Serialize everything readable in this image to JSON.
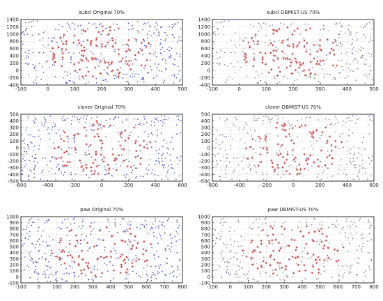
{
  "colors": {
    "min_original": "#4a55c8",
    "min_undersampled": "#8a8a8a",
    "majority": "#b01818",
    "majority_glow": "#f2c8c8"
  },
  "chart_data": [
    {
      "type": "scatter",
      "title": "subcl Original 70%",
      "xlim": [
        -100,
        500
      ],
      "ylim": [
        -400,
        1400
      ],
      "xticks": [
        -100,
        0,
        100,
        200,
        300,
        400,
        500
      ],
      "yticks": [
        -400,
        -200,
        0,
        200,
        400,
        600,
        800,
        1000,
        1200,
        1400
      ],
      "grid": true,
      "minority_style": "original",
      "seed": 11
    },
    {
      "type": "scatter",
      "title": "subcl DBMIST-US 70%",
      "xlim": [
        -100,
        500
      ],
      "ylim": [
        -400,
        1400
      ],
      "xticks": [
        -100,
        0,
        100,
        200,
        300,
        400,
        500
      ],
      "yticks": [
        -400,
        -200,
        0,
        200,
        400,
        600,
        800,
        1000,
        1200,
        1400
      ],
      "grid": true,
      "minority_style": "undersampled",
      "seed": 11
    },
    {
      "type": "scatter",
      "title": "clover Original 70%",
      "xlim": [
        -600,
        600
      ],
      "ylim": [
        -500,
        500
      ],
      "xticks": [
        -600,
        -400,
        -200,
        0,
        200,
        400,
        600
      ],
      "yticks": [
        -500,
        -400,
        -300,
        -200,
        -100,
        0,
        100,
        200,
        300,
        400,
        500
      ],
      "grid": true,
      "minority_style": "original",
      "seed": 23
    },
    {
      "type": "scatter",
      "title": "clover DBMIST-US 70%",
      "xlim": [
        -600,
        600
      ],
      "ylim": [
        -500,
        500
      ],
      "xticks": [
        -600,
        -400,
        -200,
        0,
        200,
        400,
        600
      ],
      "yticks": [
        -500,
        -400,
        -300,
        -200,
        -100,
        0,
        100,
        200,
        300,
        400,
        500
      ],
      "grid": true,
      "minority_style": "undersampled",
      "seed": 23
    },
    {
      "type": "scatter",
      "title": "paw Original 70%",
      "xlim": [
        -100,
        800
      ],
      "ylim": [
        -100,
        1000
      ],
      "xticks": [
        -100,
        0,
        100,
        200,
        300,
        400,
        500,
        600,
        700,
        800
      ],
      "yticks": [
        -100,
        0,
        100,
        200,
        300,
        400,
        500,
        600,
        700,
        800,
        900,
        1000
      ],
      "grid": true,
      "minority_style": "original",
      "seed": 37
    },
    {
      "type": "scatter",
      "title": "paw DBMIST-US 70%",
      "xlim": [
        -100,
        800
      ],
      "ylim": [
        -100,
        1000
      ],
      "xticks": [
        -100,
        0,
        100,
        200,
        300,
        400,
        500,
        600,
        700,
        800
      ],
      "yticks": [
        -100,
        0,
        100,
        200,
        300,
        400,
        500,
        600,
        700,
        800,
        900,
        1000
      ],
      "grid": true,
      "minority_style": "undersampled",
      "seed": 37
    }
  ]
}
